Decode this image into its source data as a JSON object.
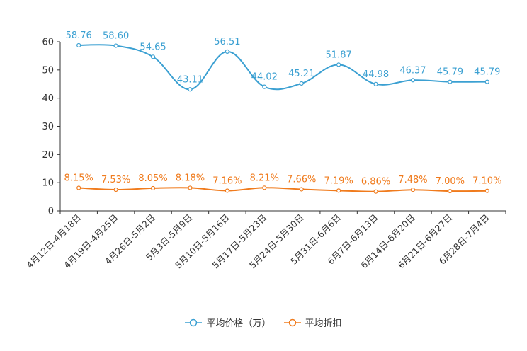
{
  "chart_data": {
    "type": "line",
    "title": "",
    "xlabel": "",
    "ylabel": "",
    "ylim": [
      0,
      60
    ],
    "yticks": [
      "0",
      "10",
      "20",
      "30",
      "40",
      "50",
      "60"
    ],
    "categories": [
      "4月12日-4月18日",
      "4月19日-4月25日",
      "4月26日-5月2日",
      "5月3日-5月9日",
      "5月10日-5月16日",
      "5月17日-5月23日",
      "5月24日-5月30日",
      "5月31日-6月6日",
      "6月7日-6月13日",
      "6月14日-6月20日",
      "6月21日-6月27日",
      "6月28日-7月4日"
    ],
    "series": [
      {
        "name": "平均价格（万）",
        "color": "#3ba0d2",
        "values": [
          58.76,
          58.6,
          54.65,
          43.11,
          56.51,
          44.02,
          45.21,
          51.87,
          44.98,
          46.37,
          45.79,
          45.79
        ],
        "labels": [
          "58.76",
          "58.60",
          "54.65",
          "43.11",
          "56.51",
          "44.02",
          "45.21",
          "51.87",
          "44.98",
          "46.37",
          "45.79",
          "45.79"
        ]
      },
      {
        "name": "平均折扣",
        "color": "#f07b1d",
        "values": [
          8.15,
          7.53,
          8.05,
          8.18,
          7.16,
          8.21,
          7.66,
          7.19,
          6.86,
          7.48,
          7.0,
          7.1
        ],
        "labels": [
          "8.15%",
          "7.53%",
          "8.05%",
          "8.18%",
          "7.16%",
          "8.21%",
          "7.66%",
          "7.19%",
          "6.86%",
          "7.48%",
          "7.00%",
          "7.10%"
        ]
      }
    ],
    "legend_position": "bottom-center"
  }
}
